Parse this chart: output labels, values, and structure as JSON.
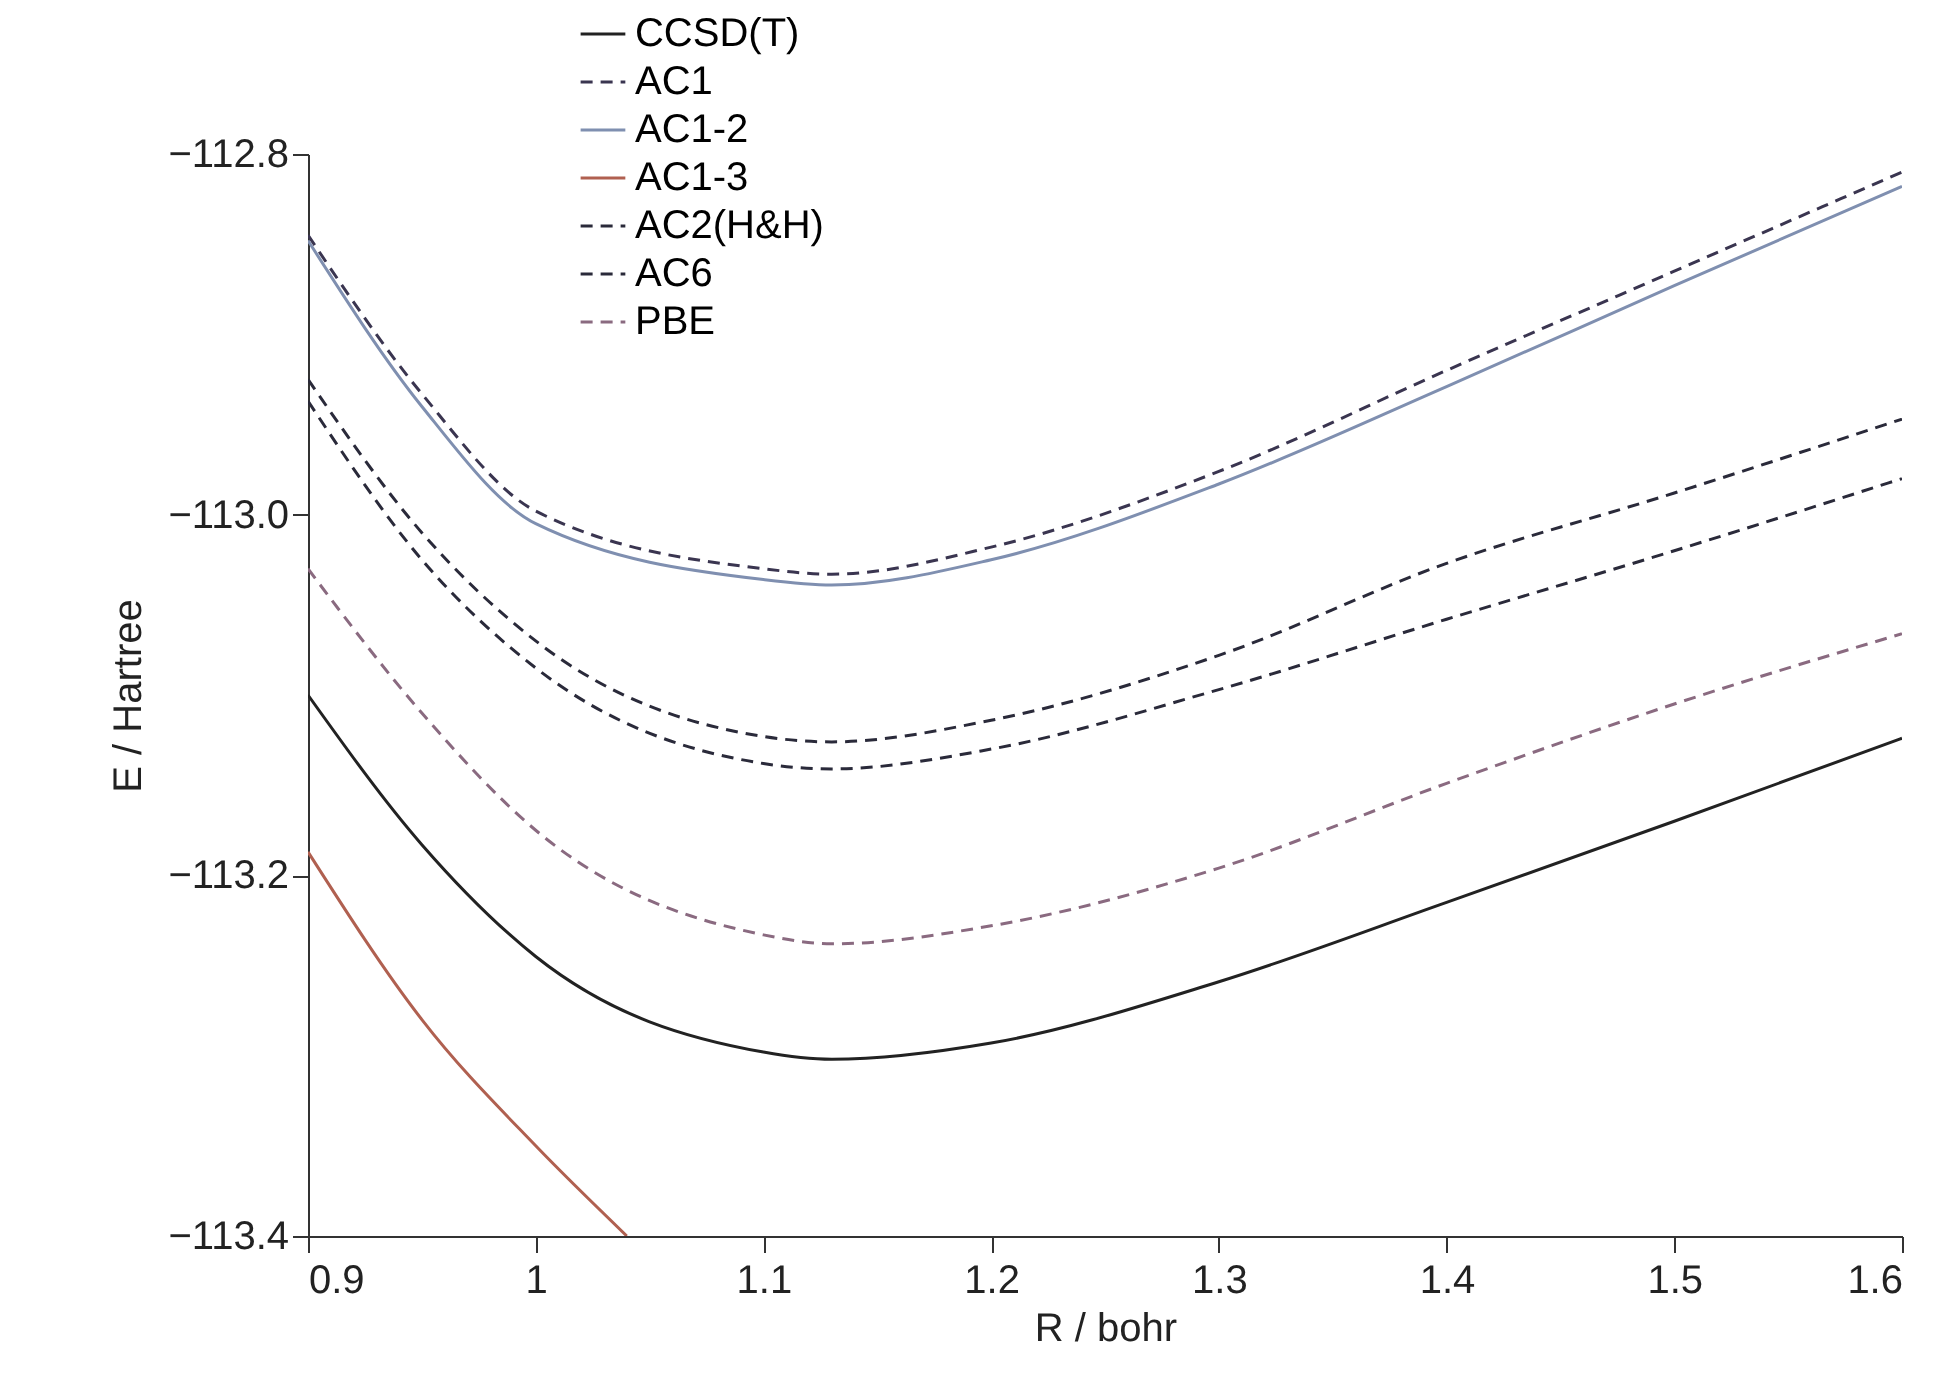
{
  "chart_data": {
    "type": "line",
    "xlabel": "R / bohr",
    "ylabel": "E / Hartree",
    "x": [
      0.9,
      0.95,
      1.0,
      1.1,
      1.13,
      1.2,
      1.3,
      1.4,
      1.5,
      1.6
    ],
    "xlim": [
      0.9,
      1.6
    ],
    "xticks": [
      0.9,
      1,
      1.1,
      1.2,
      1.3,
      1.4,
      1.5,
      1.6
    ],
    "ylim": [
      -113.4,
      -112.8
    ],
    "yticks": [
      {
        "value": -113.4,
        "label": "−113.4"
      },
      {
        "value": -113.2,
        "label": "−113.2"
      },
      {
        "value": -113,
        "label": "−113.0"
      },
      {
        "value": -112.8,
        "label": "−112.8"
      }
    ],
    "legend": "top",
    "grid": false,
    "series": [
      {
        "name": "CCSD(T)",
        "color": "#222222",
        "line_style": "solid",
        "values": [
          -113.1,
          -113.183,
          -113.245,
          -113.298,
          -113.302,
          -113.293,
          -113.259,
          -113.215,
          -113.17,
          -113.124
        ]
      },
      {
        "name": "AC1",
        "color": "#3a3550",
        "line_style": "dashed",
        "values": [
          -112.845,
          -112.933,
          -112.998,
          -113.03,
          -113.033,
          -113.018,
          -112.976,
          -112.92,
          -112.865,
          -112.81
        ]
      },
      {
        "name": "AC1-2",
        "color": "#7f8fb0",
        "line_style": "solid",
        "values": [
          -112.848,
          -112.94,
          -113.005,
          -113.036,
          -113.039,
          -113.025,
          -112.983,
          -112.929,
          -112.873,
          -112.818
        ]
      },
      {
        "name": "AC1-3",
        "color": "#b06050",
        "line_style": "solid",
        "x": [
          0.9,
          0.95,
          1.0,
          1.04
        ],
        "values": [
          -113.187,
          -113.28,
          -113.35,
          -113.4
        ]
      },
      {
        "name": "AC2(H&H)",
        "color": "#2a2a3a",
        "line_style": "dashed",
        "values": [
          -112.925,
          -113.01,
          -113.07,
          -113.123,
          -113.126,
          -113.114,
          -113.078,
          -113.027,
          -112.988,
          -112.947
        ]
      },
      {
        "name": "AC6",
        "color": "#2a2a3a",
        "line_style": "dashed",
        "values": [
          -112.937,
          -113.025,
          -113.085,
          -113.138,
          -113.141,
          -113.13,
          -113.097,
          -113.058,
          -113.02,
          -112.98
        ]
      },
      {
        "name": "PBE",
        "color": "#8a6a80",
        "line_style": "dashed",
        "values": [
          -113.03,
          -113.11,
          -113.175,
          -113.233,
          -113.238,
          -113.228,
          -113.196,
          -113.149,
          -113.105,
          -113.066
        ]
      }
    ]
  }
}
